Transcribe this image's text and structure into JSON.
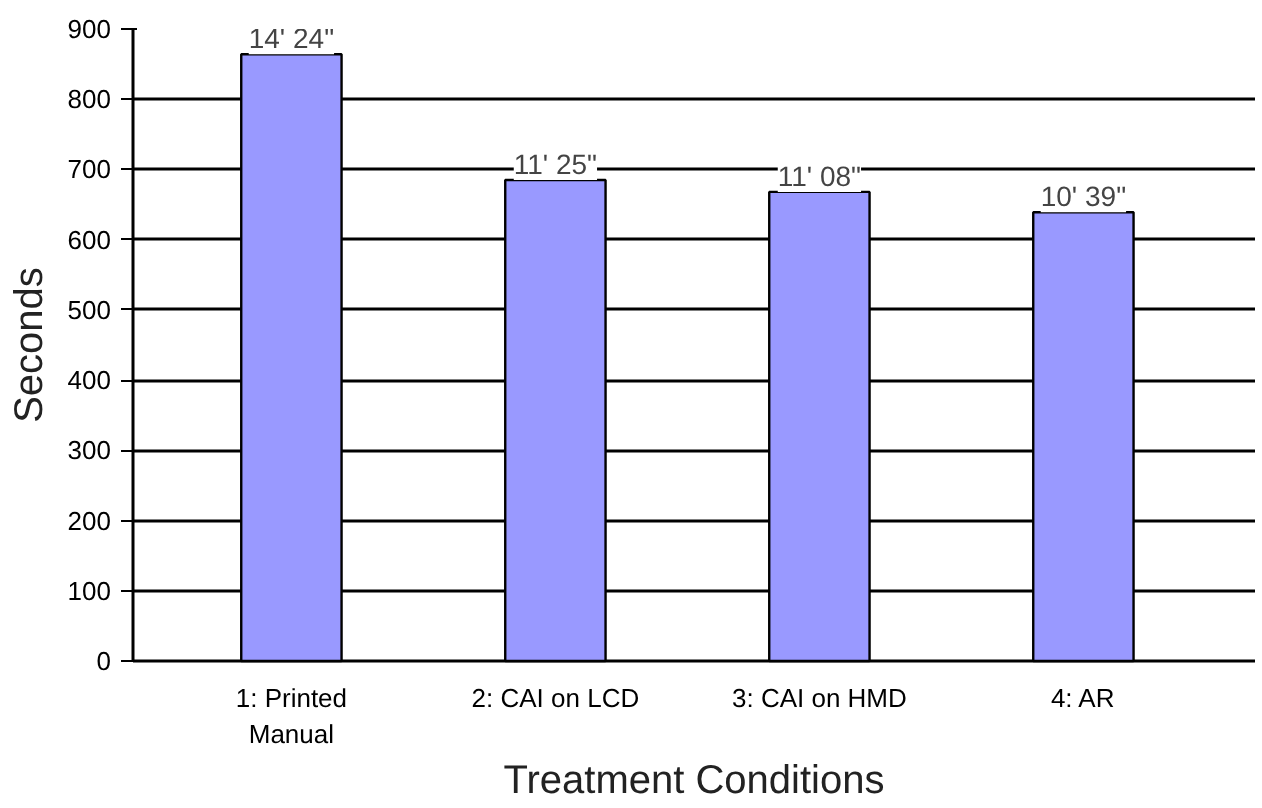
{
  "chart_data": {
    "type": "bar",
    "xlabel": "Treatment Conditions",
    "ylabel": "Seconds",
    "categories": [
      "1: Printed\nManual",
      "2: CAI on LCD",
      "3: CAI on HMD",
      "4: AR"
    ],
    "values": [
      864,
      685,
      668,
      639
    ],
    "annotations": [
      {
        "text": "14' 24\"",
        "x": "1: Printed\nManual",
        "y": 864
      },
      {
        "text": "11' 25\"",
        "x": "2: CAI on LCD",
        "y": 685
      },
      {
        "text": "11' 08\"",
        "x": "3: CAI on HMD",
        "y": 668
      },
      {
        "text": "10' 39\"",
        "x": "4: AR",
        "y": 639
      }
    ],
    "color": "#9999ff",
    "ylim": [
      0,
      900
    ],
    "yticks": [
      0,
      100,
      200,
      300,
      400,
      500,
      600,
      700,
      800,
      900
    ],
    "grid": "y"
  }
}
